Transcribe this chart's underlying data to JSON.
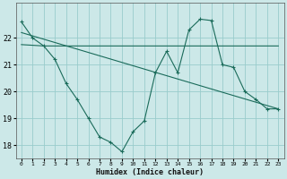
{
  "xlabel": "Humidex (Indice chaleur)",
  "background_color": "#cce8e8",
  "grid_color": "#99cccc",
  "line_color": "#1a6b5a",
  "xlim": [
    -0.5,
    23.5
  ],
  "ylim": [
    17.5,
    23.3
  ],
  "yticks": [
    18,
    19,
    20,
    21,
    22
  ],
  "xticks": [
    0,
    1,
    2,
    3,
    4,
    5,
    6,
    7,
    8,
    9,
    10,
    11,
    12,
    13,
    14,
    15,
    16,
    17,
    18,
    19,
    20,
    21,
    22,
    23
  ],
  "series1_x": [
    0,
    1,
    2,
    3,
    4,
    5,
    6,
    7,
    8,
    9,
    10,
    11,
    12,
    13,
    14,
    15,
    16,
    17,
    18,
    19,
    20,
    21,
    22,
    23
  ],
  "series1_y": [
    22.6,
    22.0,
    21.7,
    21.2,
    20.3,
    19.7,
    19.0,
    18.3,
    18.1,
    17.75,
    18.5,
    18.9,
    20.7,
    21.5,
    20.7,
    22.3,
    22.7,
    22.65,
    21.0,
    20.9,
    20.0,
    19.7,
    19.35,
    19.35
  ],
  "series2_x": [
    0,
    2,
    3,
    17,
    23
  ],
  "series2_y": [
    21.75,
    21.7,
    21.7,
    21.7,
    21.7
  ],
  "series3_x": [
    0,
    23
  ],
  "series3_y": [
    22.2,
    19.35
  ],
  "xlabel_fontsize": 6,
  "xlabel_fontweight": "bold",
  "ytick_fontsize": 6,
  "xtick_fontsize": 4.5
}
